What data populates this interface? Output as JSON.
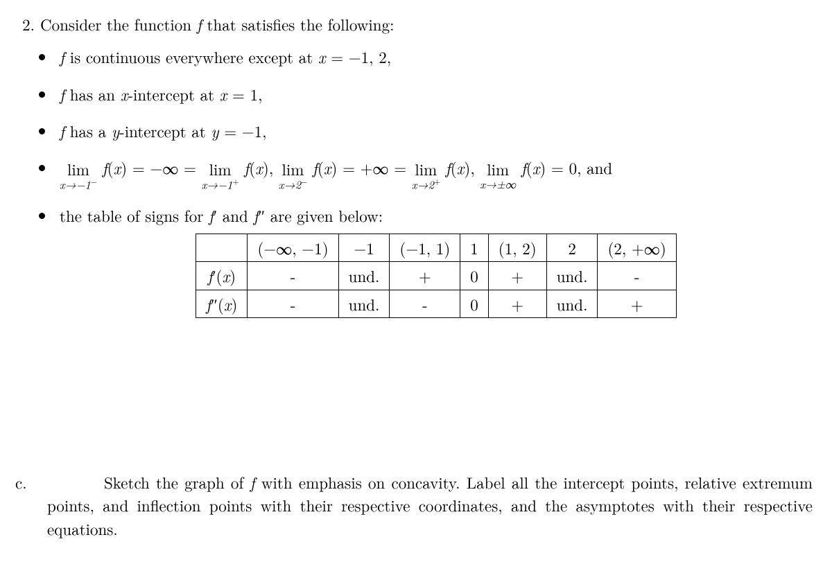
{
  "problem": {
    "number": "2.",
    "intro_before_f": "Consider the function ",
    "intro_f": "f",
    "intro_after_f": " that satisfies the following:"
  },
  "bullet1": {
    "b_f": "f",
    "b_text1": " is continuous everywhere except at ",
    "b_x": "x",
    "b_eq": " = ",
    "b_vals": "−1, 2,"
  },
  "bullet2": {
    "b_f": "f",
    "b_text1": " has an ",
    "b_x": "x",
    "b_text2": "-intercept at ",
    "b_x2": "x",
    "b_eq": " = 1,"
  },
  "bullet3": {
    "b_f": "f",
    "b_text1": " has a ",
    "b_y": "y",
    "b_text2": "-intercept at ",
    "b_y2": "y",
    "b_eq": " = −1,"
  },
  "limits": {
    "lim_word": "lim",
    "to1": "x→−1",
    "sup_minus": "−",
    "sup_plus": "+",
    "f_of_x": "f",
    "paren_x": "x",
    "eq_ninf": " = −∞ = ",
    "to2": "x→−1",
    "comma": ",  ",
    "to3": "x→2",
    "eq_pinf": " = +∞ = ",
    "to4": "x→2",
    "comma2": ",  ",
    "to5": "x→±∞",
    "eq_zero": " = 0",
    "and_text": ", and"
  },
  "bullet5": {
    "b_text1": "the table of signs for ",
    "b_fprime": "f",
    "b_prime": "′",
    "b_and": " and ",
    "b_fpp": "f",
    "b_pp": "″",
    "b_text2": " are given below:"
  },
  "table": {
    "h1": "(−∞, −1)",
    "h2": "−1",
    "h3": "(−1, 1)",
    "h4": "1",
    "h5": "(1, 2)",
    "h6": "2",
    "h7": "(2, +∞)",
    "r1_label_f": "f",
    "r1_label_p": "′",
    "r1_label_x": "x",
    "r1_c1": "-",
    "r1_c2": "und.",
    "r1_c3": "+",
    "r1_c4": "0",
    "r1_c5": "+",
    "r1_c6": "und.",
    "r1_c7": "-",
    "r2_label_f": "f",
    "r2_label_p": "″",
    "r2_label_x": "x",
    "r2_c1": "-",
    "r2_c2": "und.",
    "r2_c3": "-",
    "r2_c4": "0",
    "r2_c5": "+",
    "r2_c6": "und.",
    "r2_c7": "+"
  },
  "partc": {
    "label": "c.",
    "t1": "Sketch the graph of ",
    "f": "f",
    "t2": " with emphasis on concavity.  Label all the intercept points, relative extremum points, and inflection points with their respective coordinates, and the asymptotes with their respective equations."
  }
}
